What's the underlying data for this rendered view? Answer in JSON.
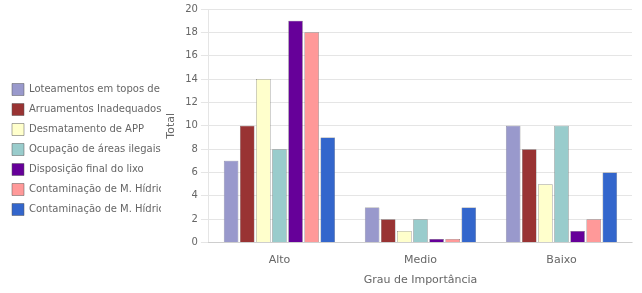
{
  "chart_data": {
    "type": "bar",
    "categories": [
      "Alto",
      "Medio",
      "Baixo"
    ],
    "series": [
      {
        "name": "Loteamentos em topos de Morros",
        "color": "#9999cc",
        "values": [
          7,
          3,
          10
        ]
      },
      {
        "name": "Arruamentos Inadequados",
        "color": "#993333",
        "values": [
          10,
          2,
          8
        ]
      },
      {
        "name": "Desmatamento de APP",
        "color": "#ffffcc",
        "values": [
          14,
          1,
          5
        ]
      },
      {
        "name": "Ocupação de áreas ilegais",
        "color": "#99cccc",
        "values": [
          8,
          2,
          10
        ]
      },
      {
        "name": "Disposição final do lixo",
        "color": "#660099",
        "values": [
          19,
          0.3,
          1
        ]
      },
      {
        "name": "Contaminação de M. Hídricos por Esgoto",
        "color": "#ff9999",
        "values": [
          18,
          0.3,
          2
        ]
      },
      {
        "name": "Contaminação de M. Hídricos pela UFV",
        "color": "#3366cc",
        "values": [
          9,
          3,
          6
        ]
      }
    ],
    "xlabel": "Grau de Importância",
    "ylabel": "Total",
    "ylim": [
      0,
      20
    ],
    "yticks": [
      0,
      2,
      4,
      6,
      8,
      10,
      12,
      14,
      16,
      18,
      20
    ],
    "grid": true,
    "legend": "left"
  }
}
